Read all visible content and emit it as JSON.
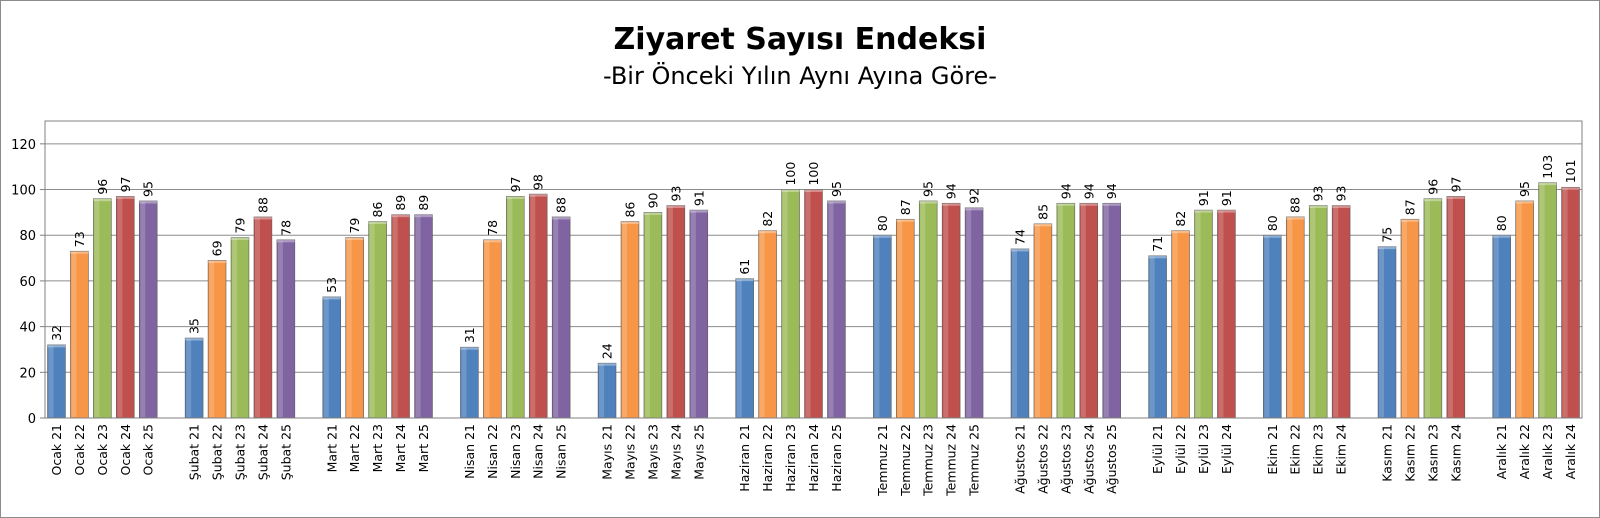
{
  "title": "Ziyaret Sayısı Endeksi",
  "subtitle": "-Bir Önceki Yılın Aynı Ayına Göre-",
  "colors": {
    "21": "#4f81bd",
    "22": "#f79646",
    "23": "#9bbb59",
    "24": "#c0504d",
    "25": "#8064a2",
    "grid": "#8c8c8c",
    "axis": "#808080"
  },
  "chart_data": {
    "type": "bar",
    "title": "Ziyaret Sayısı Endeksi",
    "subtitle": "-Bir Önceki Yılın Aynı Ayına Göre-",
    "ylim": [
      0,
      130
    ],
    "yticks": [
      0,
      20,
      40,
      60,
      80,
      100,
      120
    ],
    "grid": true,
    "legend": "none",
    "groups": [
      {
        "month": "Ocak",
        "bars": [
          {
            "label": "Ocak 21",
            "year": "21",
            "value": 32
          },
          {
            "label": "Ocak 22",
            "year": "22",
            "value": 73
          },
          {
            "label": "Ocak 23",
            "year": "23",
            "value": 96
          },
          {
            "label": "Ocak 24",
            "year": "24",
            "value": 97
          },
          {
            "label": "Ocak 25",
            "year": "25",
            "value": 95
          }
        ]
      },
      {
        "month": "Şubat",
        "bars": [
          {
            "label": "Şubat 21",
            "year": "21",
            "value": 35
          },
          {
            "label": "Şubat 22",
            "year": "22",
            "value": 69
          },
          {
            "label": "Şubat 23",
            "year": "23",
            "value": 79
          },
          {
            "label": "Şubat 24",
            "year": "24",
            "value": 88
          },
          {
            "label": "Şubat 25",
            "year": "25",
            "value": 78
          }
        ]
      },
      {
        "month": "Mart",
        "bars": [
          {
            "label": "Mart 21",
            "year": "21",
            "value": 53
          },
          {
            "label": "Mart 22",
            "year": "22",
            "value": 79
          },
          {
            "label": "Mart 23",
            "year": "23",
            "value": 86
          },
          {
            "label": "Mart 24",
            "year": "24",
            "value": 89
          },
          {
            "label": "Mart 25",
            "year": "25",
            "value": 89
          }
        ]
      },
      {
        "month": "Nisan",
        "bars": [
          {
            "label": "Nisan 21",
            "year": "21",
            "value": 31
          },
          {
            "label": "Nisan 22",
            "year": "22",
            "value": 78
          },
          {
            "label": "Nisan 23",
            "year": "23",
            "value": 97
          },
          {
            "label": "Nisan 24",
            "year": "24",
            "value": 98
          },
          {
            "label": "Nisan 25",
            "year": "25",
            "value": 88
          }
        ]
      },
      {
        "month": "Mayıs",
        "bars": [
          {
            "label": "Mayıs 21",
            "year": "21",
            "value": 24
          },
          {
            "label": "Mayıs 22",
            "year": "22",
            "value": 86
          },
          {
            "label": "Mayıs 23",
            "year": "23",
            "value": 90
          },
          {
            "label": "Mayıs 24",
            "year": "24",
            "value": 93
          },
          {
            "label": "Mayıs 25",
            "year": "25",
            "value": 91
          }
        ]
      },
      {
        "month": "Haziran",
        "bars": [
          {
            "label": "Haziran 21",
            "year": "21",
            "value": 61
          },
          {
            "label": "Haziran 22",
            "year": "22",
            "value": 82
          },
          {
            "label": "Haziran 23",
            "year": "23",
            "value": 100
          },
          {
            "label": "Haziran 24",
            "year": "24",
            "value": 100
          },
          {
            "label": "Haziran 25",
            "year": "25",
            "value": 95
          }
        ]
      },
      {
        "month": "Temmuz",
        "bars": [
          {
            "label": "Temmuz 21",
            "year": "21",
            "value": 80
          },
          {
            "label": "Temmuz 22",
            "year": "22",
            "value": 87
          },
          {
            "label": "Temmuz 23",
            "year": "23",
            "value": 95
          },
          {
            "label": "Temmuz 24",
            "year": "24",
            "value": 94
          },
          {
            "label": "Temmuz 25",
            "year": "25",
            "value": 92
          }
        ]
      },
      {
        "month": "Ağustos",
        "bars": [
          {
            "label": "Ağustos 21",
            "year": "21",
            "value": 74
          },
          {
            "label": "Ağustos 22",
            "year": "22",
            "value": 85
          },
          {
            "label": "Ağustos 23",
            "year": "23",
            "value": 94
          },
          {
            "label": "Ağustos 24",
            "year": "24",
            "value": 94
          },
          {
            "label": "Ağustos 25",
            "year": "25",
            "value": 94
          }
        ]
      },
      {
        "month": "Eylül",
        "bars": [
          {
            "label": "Eylül 21",
            "year": "21",
            "value": 71
          },
          {
            "label": "Eylül 22",
            "year": "22",
            "value": 82
          },
          {
            "label": "Eylül 23",
            "year": "23",
            "value": 91
          },
          {
            "label": "Eylül 24",
            "year": "24",
            "value": 91
          }
        ]
      },
      {
        "month": "Ekim",
        "bars": [
          {
            "label": "Ekim 21",
            "year": "21",
            "value": 80
          },
          {
            "label": "Ekim 22",
            "year": "22",
            "value": 88
          },
          {
            "label": "Ekim 23",
            "year": "23",
            "value": 93
          },
          {
            "label": "Ekim 24",
            "year": "24",
            "value": 93
          }
        ]
      },
      {
        "month": "Kasım",
        "bars": [
          {
            "label": "Kasım 21",
            "year": "21",
            "value": 75
          },
          {
            "label": "Kasım 22",
            "year": "22",
            "value": 87
          },
          {
            "label": "Kasım 23",
            "year": "23",
            "value": 96
          },
          {
            "label": "Kasım 24",
            "year": "24",
            "value": 97
          }
        ]
      },
      {
        "month": "Aralık",
        "bars": [
          {
            "label": "Aralık 21",
            "year": "21",
            "value": 80
          },
          {
            "label": "Aralık 22",
            "year": "22",
            "value": 95
          },
          {
            "label": "Aralık 23",
            "year": "23",
            "value": 103
          },
          {
            "label": "Aralık 24",
            "year": "24",
            "value": 101
          }
        ]
      }
    ]
  }
}
